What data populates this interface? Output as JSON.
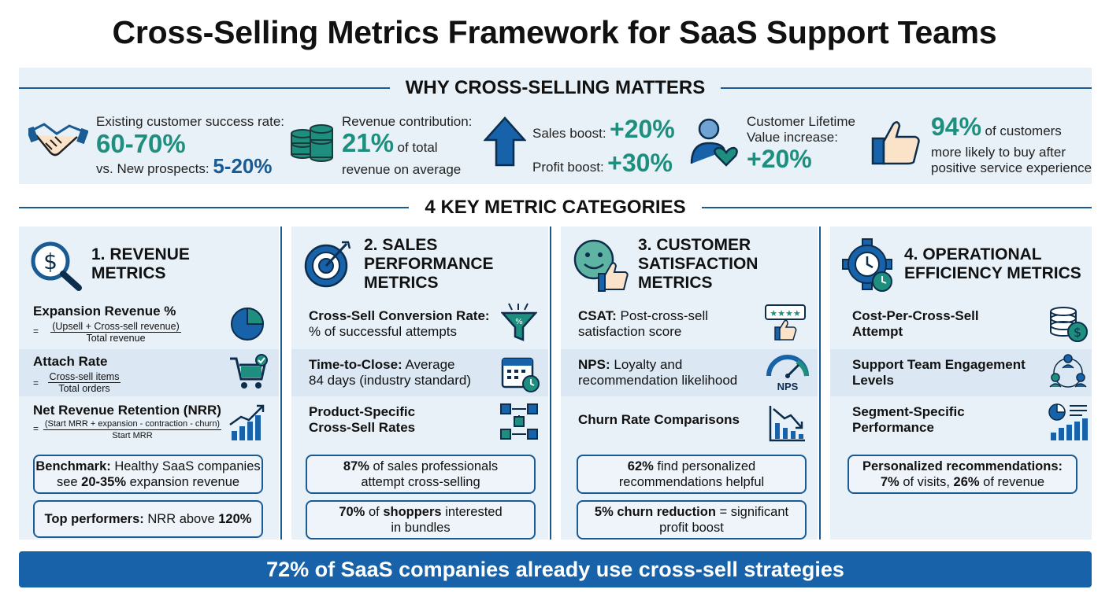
{
  "title": "Cross-Selling Metrics Framework for SaaS Support Teams",
  "why": {
    "heading": "WHY CROSS-SELLING MATTERS",
    "success_label": "Existing customer success rate:",
    "success_value": "60-70%",
    "prospects_label": "vs. New prospects:",
    "prospects_value": "5-20%",
    "revenue_label": "Revenue contribution:",
    "revenue_value": "21%",
    "revenue_suffix": "of total",
    "revenue_suffix2": "revenue on average",
    "sales_label": "Sales boost:",
    "sales_value": "+20%",
    "profit_label": "Profit boost:",
    "profit_value": "+30%",
    "clv_label1": "Customer Lifetime",
    "clv_label2": "Value increase:",
    "clv_value": "+20%",
    "customers_value": "94%",
    "customers_label1": "of customers",
    "customers_label2": "more likely to buy after",
    "customers_label3": "positive service experience"
  },
  "categories_heading": "4 KEY METRIC CATEGORIES",
  "col1": {
    "title1": "1. REVENUE",
    "title2": "METRICS",
    "m1_name": "Expansion Revenue %",
    "m1_num": "(Upsell + Cross-sell revenue)",
    "m1_den": "Total revenue",
    "m2_name": "Attach Rate",
    "m2_num": "Cross-sell items",
    "m2_den": "Total orders",
    "m3_name": "Net Revenue Retention (NRR)",
    "m3_num": "(Start MRR + expansion - contraction - churn)",
    "m3_den": "Start MRR",
    "eq": "=",
    "c1_bold": "Benchmark:",
    "c1_text": "Healthy SaaS companies",
    "c1_l2a": "see",
    "c1_l2b": "20-35%",
    "c1_l2c": "expansion revenue",
    "c2_bold": "Top performers:",
    "c2_text": "NRR above",
    "c2_val": "120%"
  },
  "col2": {
    "title1": "2. SALES",
    "title2": "PERFORMANCE",
    "title3": "METRICS",
    "m1_name": "Cross-Sell Conversion Rate:",
    "m1_desc": "% of successful attempts",
    "m2_name": "Time-to-Close:",
    "m2_desc1": "Average",
    "m2_desc2": "84 days (industry standard)",
    "m3_name1": "Product-Specific",
    "m3_name2": "Cross-Sell Rates",
    "c1_val": "87%",
    "c1_text1": "of sales professionals",
    "c1_text2": "attempt cross-selling",
    "c2_val": "70%",
    "c2_text1": "of",
    "c2_bold": "shoppers",
    "c2_text2": "interested",
    "c2_text3": "in bundles"
  },
  "col3": {
    "title1": "3. CUSTOMER",
    "title2": "SATISFACTION",
    "title3": "METRICS",
    "m1_name": "CSAT:",
    "m1_desc1": "Post-cross-sell",
    "m1_desc2": "satisfaction score",
    "m2_name": "NPS:",
    "m2_desc1": "Loyalty and",
    "m2_desc2": "recommendation likelihood",
    "m2_icon_label": "NPS",
    "m3_name": "Churn Rate Comparisons",
    "c1_val": "62%",
    "c1_text1": "find personalized",
    "c1_text2": "recommendations helpful",
    "c2_bold": "5% churn reduction",
    "c2_text1": "= significant",
    "c2_text2": "profit boost"
  },
  "col4": {
    "title1": "4. OPERATIONAL",
    "title2": "EFFICIENCY METRICS",
    "m1_name1": "Cost-Per-Cross-Sell",
    "m1_name2": "Attempt",
    "m2_name1": "Support Team Engagement",
    "m2_name2": "Levels",
    "m3_name1": "Segment-Specific",
    "m3_name2": "Performance",
    "c1_bold": "Personalized recommendations:",
    "c1_v1": "7%",
    "c1_t1": "of visits,",
    "c1_v2": "26%",
    "c1_t2": "of revenue"
  },
  "bottom": "72% of SaaS companies already use cross-sell strategies",
  "colors": {
    "navy": "#1a5b94",
    "teal": "#1e8f7e",
    "panel": "#e8f1f8",
    "bar": "#1762a8"
  }
}
